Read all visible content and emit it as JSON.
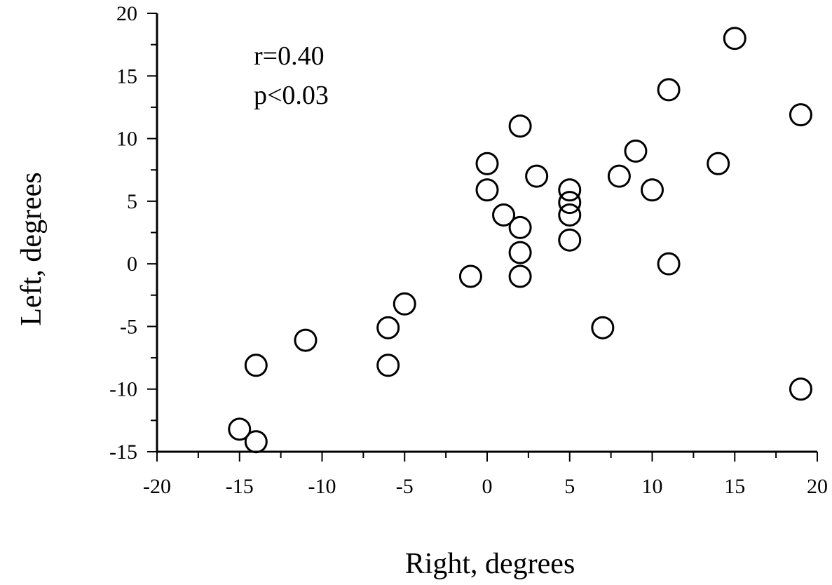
{
  "chart_data": {
    "type": "scatter",
    "xlabel": "Right, degrees",
    "ylabel": "Left, degrees",
    "xlim": [
      -20,
      20
    ],
    "ylim": [
      -15,
      20
    ],
    "xticks": [
      -20,
      -15,
      -10,
      -5,
      0,
      5,
      10,
      15,
      20
    ],
    "yticks": [
      -15,
      -10,
      -5,
      0,
      5,
      10,
      15,
      20
    ],
    "xtick_labels": [
      "-20",
      "-15",
      "-10",
      "-5",
      "0",
      "5",
      "10",
      "15",
      "20"
    ],
    "ytick_labels": [
      "-15",
      "-10",
      "-5",
      "0",
      "5",
      "10",
      "15",
      "20"
    ],
    "grid": false,
    "marker": "open-circle",
    "annotations": [
      "r=0.40",
      "p<0.03"
    ],
    "points": [
      {
        "x": -15,
        "y": -13.2
      },
      {
        "x": -14,
        "y": -14.2
      },
      {
        "x": -14,
        "y": -8.1
      },
      {
        "x": -11,
        "y": -6.1
      },
      {
        "x": -6,
        "y": -5.1
      },
      {
        "x": -6,
        "y": -8.1
      },
      {
        "x": -5,
        "y": -3.2
      },
      {
        "x": -1,
        "y": -1.0
      },
      {
        "x": 0,
        "y": 8.0
      },
      {
        "x": 0,
        "y": 5.9
      },
      {
        "x": 1,
        "y": 3.9
      },
      {
        "x": 2,
        "y": 11.0
      },
      {
        "x": 2,
        "y": 2.9
      },
      {
        "x": 2,
        "y": 0.9
      },
      {
        "x": 2,
        "y": -1.0
      },
      {
        "x": 3,
        "y": 7.0
      },
      {
        "x": 5,
        "y": 5.9
      },
      {
        "x": 5,
        "y": 4.9
      },
      {
        "x": 5,
        "y": 3.9
      },
      {
        "x": 5,
        "y": 1.9
      },
      {
        "x": 7,
        "y": -5.1
      },
      {
        "x": 8,
        "y": 7.0
      },
      {
        "x": 9,
        "y": 9.0
      },
      {
        "x": 10,
        "y": 5.9
      },
      {
        "x": 11,
        "y": 13.9
      },
      {
        "x": 11,
        "y": 0.0
      },
      {
        "x": 14,
        "y": 8.0
      },
      {
        "x": 15,
        "y": 18.0
      },
      {
        "x": 19,
        "y": 11.9
      },
      {
        "x": 19,
        "y": -10.0
      }
    ]
  }
}
